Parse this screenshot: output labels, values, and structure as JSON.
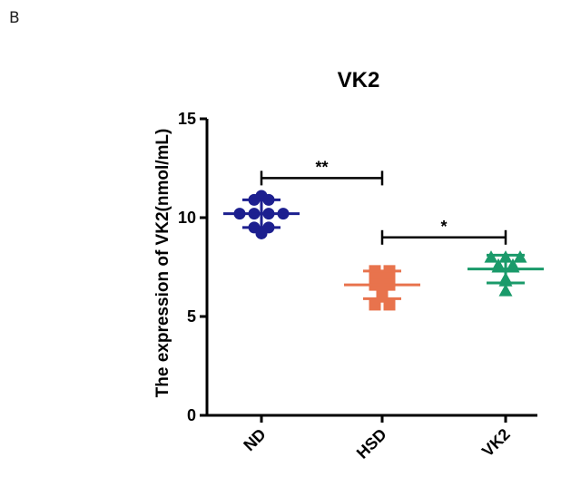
{
  "panel_label": "B",
  "chart_data": {
    "type": "scatter",
    "title": "VK2",
    "xlabel": "",
    "ylabel": "The expression of VK2(nmol/mL)",
    "ylim": [
      0,
      15
    ],
    "yticks": [
      "0",
      "5",
      "10",
      "15"
    ],
    "categories": [
      "ND",
      "HSD",
      "VK2"
    ],
    "series": [
      {
        "category": "ND",
        "color": "#1c1f8f",
        "marker": "circle",
        "mean": 10.2,
        "sd": 0.7,
        "points": [
          11.1,
          10.9,
          10.9,
          10.2,
          10.2,
          10.2,
          10.2,
          9.5,
          9.5,
          9.2
        ]
      },
      {
        "category": "HSD",
        "color": "#e8734d",
        "marker": "square",
        "mean": 6.6,
        "sd": 0.7,
        "points": [
          7.3,
          7.3,
          7.0,
          7.0,
          6.5,
          6.6,
          6.6,
          6.0,
          5.6,
          5.6
        ]
      },
      {
        "category": "VK2",
        "color": "#1a9a6a",
        "marker": "triangle",
        "mean": 7.4,
        "sd": 0.7,
        "points": [
          8.0,
          8.0,
          8.0,
          7.6,
          7.6,
          7.5,
          7.5,
          6.9,
          6.8,
          6.3
        ]
      }
    ],
    "significance": [
      {
        "from": "ND",
        "to": "HSD",
        "label": "**",
        "y": 12.0
      },
      {
        "from": "HSD",
        "to": "VK2",
        "label": "*",
        "y": 9.0
      }
    ]
  }
}
